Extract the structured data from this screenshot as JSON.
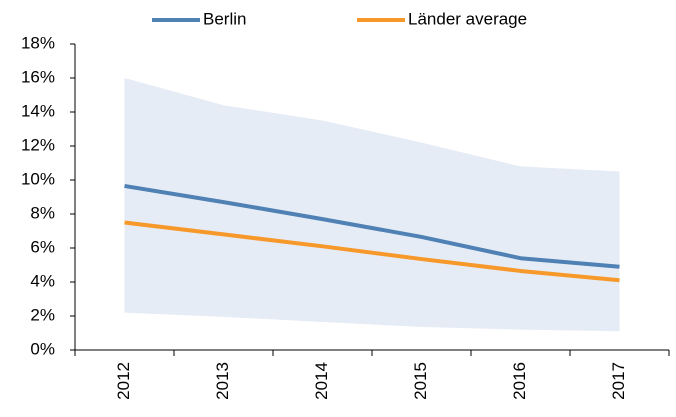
{
  "chart_data": {
    "type": "line",
    "categories": [
      "2012",
      "2013",
      "2014",
      "2015",
      "2016",
      "2017"
    ],
    "series": [
      {
        "name": "Berlin",
        "color": "#4f81b4",
        "values": [
          9.65,
          8.7,
          7.7,
          6.65,
          5.4,
          4.9
        ]
      },
      {
        "name": "Länder average",
        "color": "#f7982b",
        "values": [
          7.5,
          6.8,
          6.1,
          5.35,
          4.65,
          4.1
        ]
      }
    ],
    "range": {
      "color": "#e6ecf5",
      "high": [
        16.0,
        14.4,
        13.5,
        12.2,
        10.8,
        10.5
      ],
      "low": [
        2.2,
        1.95,
        1.65,
        1.35,
        1.2,
        1.1
      ]
    },
    "ylim": [
      0,
      18
    ],
    "yticks": [
      {
        "value": 0,
        "label": "0%"
      },
      {
        "value": 2,
        "label": "2%"
      },
      {
        "value": 4,
        "label": "4%"
      },
      {
        "value": 6,
        "label": "6%"
      },
      {
        "value": 8,
        "label": "8%"
      },
      {
        "value": 10,
        "label": "10%"
      },
      {
        "value": 12,
        "label": "12%"
      },
      {
        "value": 14,
        "label": "14%"
      },
      {
        "value": 16,
        "label": "16%"
      },
      {
        "value": 18,
        "label": "18%"
      }
    ],
    "grid": false,
    "legend": "top"
  }
}
